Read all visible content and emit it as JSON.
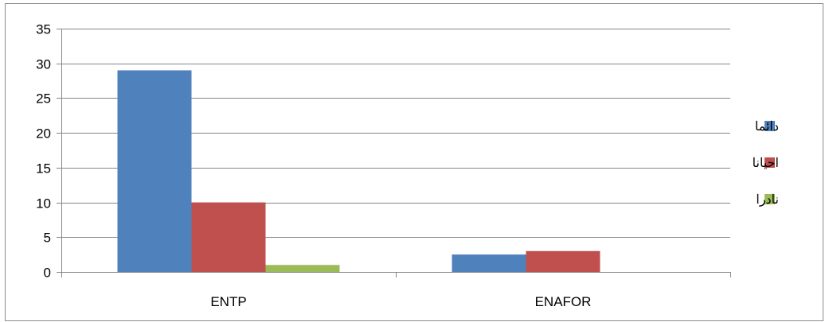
{
  "chart_data": {
    "type": "bar",
    "categories": [
      "ENTP",
      "ENAFOR"
    ],
    "series": [
      {
        "name": "دائما",
        "values": [
          29,
          2.5
        ],
        "color": "#4F81BD"
      },
      {
        "name": "احيانا",
        "values": [
          10,
          3
        ],
        "color": "#C0504D"
      },
      {
        "name": "نادرا",
        "values": [
          1,
          0
        ],
        "color": "#9BBB59"
      }
    ],
    "ylim": [
      0,
      35
    ],
    "yticks": [
      0,
      5,
      10,
      15,
      20,
      25,
      30,
      35
    ],
    "grid": true,
    "legend_position": "right",
    "gridline_color": "#868686",
    "axis_color": "#868686"
  }
}
